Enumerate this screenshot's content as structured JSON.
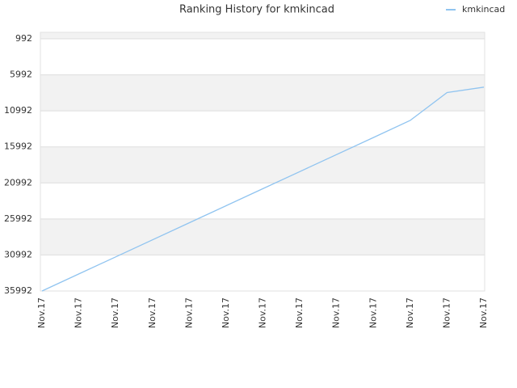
{
  "chart_data": {
    "type": "line",
    "title": "Ranking History for kmkincad",
    "categories": [
      "Nov.17",
      "Nov.17",
      "Nov.17",
      "Nov.17",
      "Nov.17",
      "Nov.17",
      "Nov.17",
      "Nov.17",
      "Nov.17",
      "Nov.17",
      "Nov.17",
      "Nov.17",
      "Nov.17"
    ],
    "series": [
      {
        "name": "kmkincad",
        "color": "#90c4f0",
        "values": [
          35992,
          33625,
          31258,
          28891,
          26524,
          24157,
          21790,
          19423,
          17056,
          14689,
          12322,
          8450,
          7700
        ]
      }
    ],
    "ylim": [
      92,
      35992
    ],
    "y_reversed": true,
    "yticks": [
      992,
      5992,
      10992,
      15992,
      20992,
      25992,
      30992,
      35992
    ],
    "grid": true,
    "legend": "top-right"
  }
}
